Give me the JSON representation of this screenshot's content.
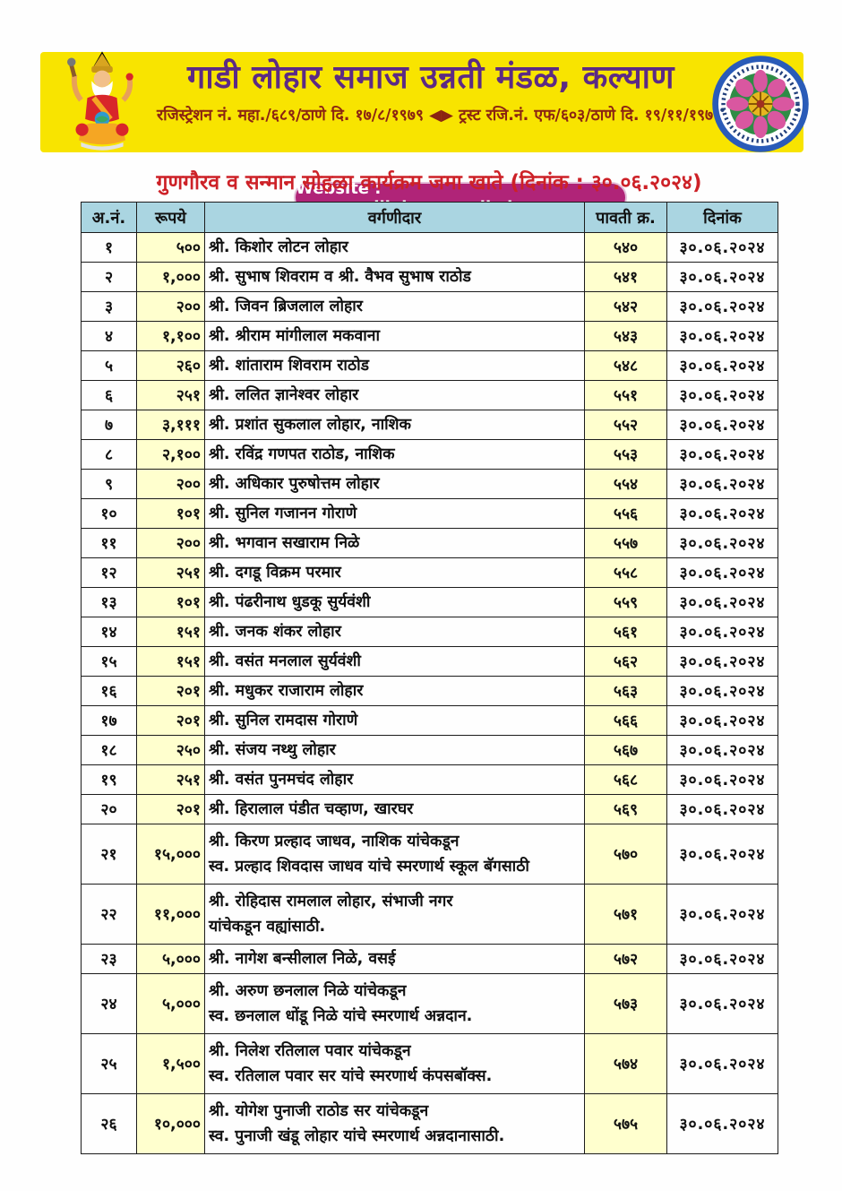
{
  "header": {
    "title": "गाडी लोहार समाज उन्नती मंडळ, कल्याण",
    "registration_line": "रजिस्ट्रेशन नं. महा./६८९/ठाणे दि. १७/८/१९७९ ◀▶ ट्रस्ट रजि.नं. एफ/६०३/ठाणे दि. १९/११/१९७९",
    "website_label": "Website : www.gadiloharsamajkalyan.com",
    "icons": {
      "left": "vishwakarma-deity-icon",
      "right": "society-seal-icon"
    },
    "colors": {
      "banner_bg": "#f8e400",
      "title_text": "#5c2a85",
      "registration_text": "#8b2412",
      "website_pill_bg": "#b02478",
      "website_pill_text": "#ffffff"
    }
  },
  "page_heading": "गुणगौरव व सन्मान सोहळा कार्यक्रम जमा खाते (दिनांक : ३०.०६.२०२४)",
  "table": {
    "columns": [
      "अ.नं.",
      "रूपये",
      "वर्गणीदार",
      "पावती क्र.",
      "दिनांक"
    ],
    "colors": {
      "header_bg": "#aad5e1",
      "amount_cell_bg": "#ffffce",
      "border": "#1c1c1c"
    },
    "rows": [
      {
        "sno": "१",
        "amount": "५००",
        "name": [
          "श्री. किशोर लोटन लोहार"
        ],
        "receipt": "५४०",
        "date": "३०.०६.२०२४"
      },
      {
        "sno": "२",
        "amount": "१,०००",
        "name": [
          "श्री. सुभाष शिवराम व श्री. वैभव सुभाष राठोड"
        ],
        "receipt": "५४१",
        "date": "३०.०६.२०२४"
      },
      {
        "sno": "३",
        "amount": "२००",
        "name": [
          "श्री. जिवन ब्रिजलाल लोहार"
        ],
        "receipt": "५४२",
        "date": "३०.०६.२०२४"
      },
      {
        "sno": "४",
        "amount": "१,१००",
        "name": [
          "श्री. श्रीराम मांगीलाल मकवाना"
        ],
        "receipt": "५४३",
        "date": "३०.०६.२०२४"
      },
      {
        "sno": "५",
        "amount": "२६०",
        "name": [
          "श्री. शांताराम शिवराम राठोड"
        ],
        "receipt": "५४८",
        "date": "३०.०६.२०२४"
      },
      {
        "sno": "६",
        "amount": "२५१",
        "name": [
          "श्री. ललित ज्ञानेश्वर लोहार"
        ],
        "receipt": "५५१",
        "date": "३०.०६.२०२४"
      },
      {
        "sno": "७",
        "amount": "३,१११",
        "name": [
          "श्री. प्रशांत सुकलाल लोहार, नाशिक"
        ],
        "receipt": "५५२",
        "date": "३०.०६.२०२४"
      },
      {
        "sno": "८",
        "amount": "२,१००",
        "name": [
          "श्री. रविंद्र गणपत राठोड, नाशिक"
        ],
        "receipt": "५५३",
        "date": "३०.०६.२०२४"
      },
      {
        "sno": "९",
        "amount": "२००",
        "name": [
          "श्री. अधिकार पुरुषोत्तम लोहार"
        ],
        "receipt": "५५४",
        "date": "३०.०६.२०२४"
      },
      {
        "sno": "१०",
        "amount": "१०१",
        "name": [
          "श्री. सुनिल गजानन गोराणे"
        ],
        "receipt": "५५६",
        "date": "३०.०६.२०२४"
      },
      {
        "sno": "११",
        "amount": "२००",
        "name": [
          "श्री. भगवान सखाराम निळे"
        ],
        "receipt": "५५७",
        "date": "३०.०६.२०२४"
      },
      {
        "sno": "१२",
        "amount": "२५१",
        "name": [
          "श्री. दगडू विक्रम परमार"
        ],
        "receipt": "५५८",
        "date": "३०.०६.२०२४"
      },
      {
        "sno": "१३",
        "amount": "१०१",
        "name": [
          "श्री. पंढरीनाथ धुडकू सुर्यवंशी"
        ],
        "receipt": "५५९",
        "date": "३०.०६.२०२४"
      },
      {
        "sno": "१४",
        "amount": "१५१",
        "name": [
          "श्री. जनक शंकर लोहार"
        ],
        "receipt": "५६१",
        "date": "३०.०६.२०२४"
      },
      {
        "sno": "१५",
        "amount": "१५१",
        "name": [
          "श्री. वसंत मनलाल सुर्यवंशी"
        ],
        "receipt": "५६२",
        "date": "३०.०६.२०२४"
      },
      {
        "sno": "१६",
        "amount": "२०१",
        "name": [
          "श्री. मधुकर राजाराम लोहार"
        ],
        "receipt": "५६३",
        "date": "३०.०६.२०२४"
      },
      {
        "sno": "१७",
        "amount": "२०१",
        "name": [
          "श्री. सुनिल रामदास गोराणे"
        ],
        "receipt": "५६६",
        "date": "३०.०६.२०२४"
      },
      {
        "sno": "१८",
        "amount": "२५०",
        "name": [
          "श्री. संजय नथ्थु लोहार"
        ],
        "receipt": "५६७",
        "date": "३०.०६.२०२४"
      },
      {
        "sno": "१९",
        "amount": "२५१",
        "name": [
          "श्री. वसंत पुनमचंद लोहार"
        ],
        "receipt": "५६८",
        "date": "३०.०६.२०२४"
      },
      {
        "sno": "२०",
        "amount": "२०१",
        "name": [
          "श्री. हिरालाल पंडीत चव्हाण, खारघर"
        ],
        "receipt": "५६९",
        "date": "३०.०६.२०२४"
      },
      {
        "sno": "२१",
        "amount": "१५,०००",
        "name": [
          "श्री. किरण प्रल्हाद जाधव, नाशिक यांचेकडून",
          "स्व. प्रल्हाद शिवदास जाधव यांचे स्मरणार्थ स्कूल बॅगसाठी"
        ],
        "receipt": "५७०",
        "date": "३०.०६.२०२४"
      },
      {
        "sno": "२२",
        "amount": "११,०००",
        "name": [
          "श्री. रोहिदास रामलाल लोहार, संभाजी नगर",
          "यांचेकडून वह्यांसाठी."
        ],
        "receipt": "५७१",
        "date": "३०.०६.२०२४"
      },
      {
        "sno": "२३",
        "amount": "५,०००",
        "name": [
          "श्री. नागेश बन्सीलाल निळे, वसई"
        ],
        "receipt": "५७२",
        "date": "३०.०६.२०२४"
      },
      {
        "sno": "२४",
        "amount": "५,०००",
        "name": [
          "श्री. अरुण छनलाल निळे यांचेकडून",
          "स्व. छनलाल धोंडू निळे यांचे स्मरणार्थ अन्नदान."
        ],
        "receipt": "५७३",
        "date": "३०.०६.२०२४"
      },
      {
        "sno": "२५",
        "amount": "१,५००",
        "name": [
          "श्री. निलेश रतिलाल पवार यांचेकडून",
          "स्व. रतिलाल पवार सर यांचे स्मरणार्थ कंपसबॉक्स."
        ],
        "receipt": "५७४",
        "date": "३०.०६.२०२४"
      },
      {
        "sno": "२६",
        "amount": "१०,०००",
        "name": [
          "श्री. योगेश पुनाजी राठोड सर यांचेकडून",
          "स्व. पुनाजी खंडू लोहार यांचे स्मरणार्थ अन्नदानासाठी."
        ],
        "receipt": "५७५",
        "date": "३०.०६.२०२४"
      }
    ]
  }
}
